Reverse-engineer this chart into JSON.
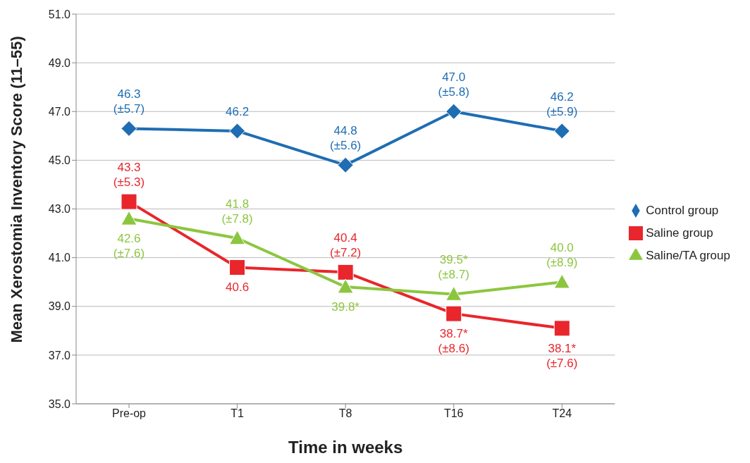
{
  "chart_data": {
    "type": "line",
    "xlabel": "Time in weeks",
    "ylabel": "Mean Xerostomia Inventory Score (11–55)",
    "categories": [
      "Pre-op",
      "T1",
      "T8",
      "T16",
      "T24"
    ],
    "series": [
      {
        "name": "Control group",
        "color": "#1f6db3",
        "marker": "diamond",
        "values": [
          46.3,
          46.2,
          44.8,
          47.0,
          46.2
        ],
        "value_labels": [
          "46.3\n(±5.7)",
          "46.2",
          "44.8\n(±5.6)",
          "47.0\n(±5.8)",
          "46.2\n(±5.9)"
        ]
      },
      {
        "name": "Saline group",
        "color": "#e8262b",
        "marker": "square",
        "values": [
          43.3,
          40.6,
          40.4,
          38.7,
          38.1
        ],
        "value_labels": [
          "43.3\n(±5.3)",
          "40.6",
          "40.4\n(±7.2)",
          "38.7*\n(±8.6)",
          "38.1*\n(±7.6)"
        ]
      },
      {
        "name": "Saline/TA group",
        "color": "#8cc63f",
        "marker": "triangle",
        "values": [
          42.6,
          41.8,
          39.8,
          39.5,
          40.0
        ],
        "value_labels": [
          "42.6\n(±7.6)",
          "41.8\n(±7.8)",
          "39.8*",
          "39.5*\n(±8.7)",
          "40.0\n(±8.9)"
        ]
      }
    ],
    "ylim": [
      35,
      51
    ],
    "yticks": [
      {
        "value": 35,
        "label": "35.0"
      },
      {
        "value": 37,
        "label": "37.0"
      },
      {
        "value": 39,
        "label": "39.0"
      },
      {
        "value": 41,
        "label": "41.0"
      },
      {
        "value": 43,
        "label": "43.0"
      },
      {
        "value": 45,
        "label": "45.0"
      },
      {
        "value": 47,
        "label": "47.0"
      },
      {
        "value": 49,
        "label": "49.0"
      },
      {
        "value": 51,
        "label": "51.0"
      }
    ],
    "grid": "y",
    "legend": "right",
    "line_style": "solid"
  }
}
